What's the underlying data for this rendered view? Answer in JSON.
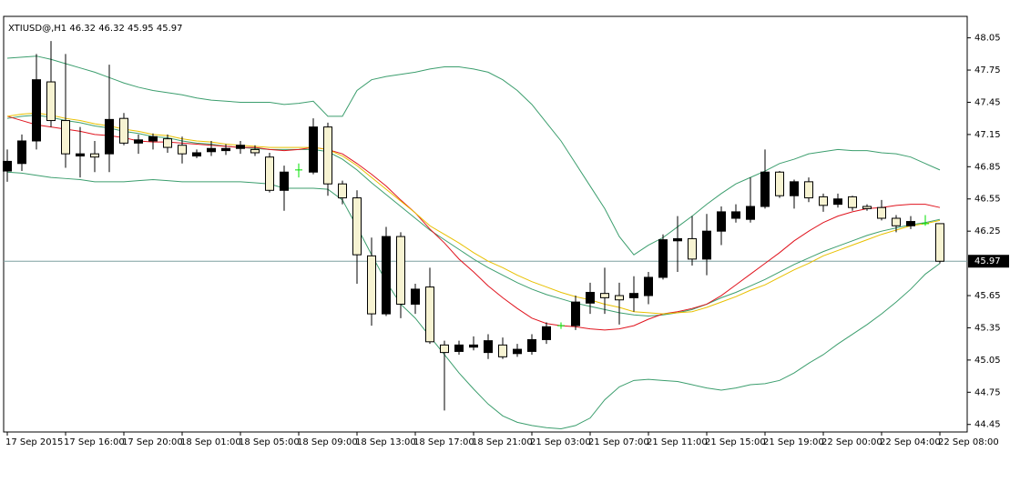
{
  "chart_data": {
    "type": "candlestick",
    "title": "XTIUSD@,H1",
    "categories": [
      "17 Sep 2015",
      null,
      null,
      null,
      "17 Sep 16:00",
      null,
      null,
      null,
      "17 Sep 20:00",
      null,
      null,
      null,
      "18 Sep 01:00",
      null,
      null,
      null,
      "18 Sep 05:00",
      null,
      null,
      null,
      "18 Sep 09:00",
      null,
      null,
      null,
      "18 Sep 13:00",
      null,
      null,
      null,
      "18 Sep 17:00",
      null,
      null,
      null,
      "18 Sep 21:00",
      null,
      null,
      null,
      "21 Sep 03:00",
      null,
      null,
      null,
      "21 Sep 07:00",
      null,
      null,
      null,
      "21 Sep 11:00",
      null,
      null,
      null,
      "21 Sep 15:00",
      null,
      null,
      null,
      "21 Sep 19:00",
      null,
      null,
      null,
      "22 Sep 00:00",
      null,
      null,
      null,
      "22 Sep 04:00",
      null,
      null,
      null,
      "22 Sep 08:00"
    ],
    "open": [
      46.81,
      46.88,
      47.09,
      47.64,
      47.28,
      46.95,
      46.97,
      46.97,
      47.3,
      47.07,
      47.09,
      47.11,
      47.05,
      46.95,
      46.99,
      47.0,
      47.02,
      47.01,
      46.94,
      46.63,
      46.82,
      46.8,
      47.22,
      46.69,
      46.56,
      46.02,
      45.48,
      46.2,
      45.57,
      45.73,
      45.19,
      45.13,
      45.17,
      45.12,
      45.19,
      45.11,
      45.13,
      45.24,
      45.37,
      45.37,
      45.58,
      45.67,
      45.65,
      45.63,
      45.65,
      45.82,
      46.16,
      46.18,
      45.99,
      46.25,
      46.37,
      46.36,
      46.48,
      46.8,
      46.58,
      46.71,
      46.57,
      46.5,
      46.57,
      46.48,
      46.47,
      46.37,
      46.3,
      46.32,
      46.32
    ],
    "high": [
      47.01,
      47.15,
      47.9,
      48.02,
      47.9,
      47.22,
      47.09,
      47.8,
      47.35,
      47.15,
      47.16,
      47.15,
      47.13,
      47.01,
      47.09,
      47.06,
      47.09,
      47.05,
      46.98,
      46.86,
      46.88,
      47.3,
      47.26,
      46.72,
      46.63,
      46.19,
      46.29,
      46.24,
      45.76,
      45.91,
      45.23,
      45.23,
      45.27,
      45.29,
      45.26,
      45.2,
      45.29,
      45.4,
      45.4,
      45.65,
      45.77,
      45.91,
      45.77,
      45.83,
      45.87,
      46.22,
      46.39,
      46.39,
      46.41,
      46.48,
      46.5,
      46.75,
      47.01,
      46.81,
      46.73,
      46.75,
      46.6,
      46.6,
      46.58,
      46.5,
      46.54,
      46.4,
      46.39,
      46.4,
      46.32
    ],
    "low": [
      46.71,
      46.81,
      47.01,
      47.22,
      46.84,
      46.75,
      46.8,
      46.8,
      47.05,
      46.97,
      47.01,
      46.98,
      46.88,
      46.93,
      46.95,
      46.96,
      46.97,
      46.95,
      46.61,
      46.44,
      46.75,
      46.78,
      46.58,
      46.5,
      45.76,
      45.37,
      45.46,
      45.44,
      45.48,
      45.2,
      44.58,
      45.1,
      45.14,
      45.06,
      45.06,
      45.08,
      45.1,
      45.2,
      45.34,
      45.33,
      45.48,
      45.48,
      45.38,
      45.5,
      45.57,
      45.8,
      45.87,
      45.93,
      45.84,
      46.12,
      46.33,
      46.33,
      46.46,
      46.56,
      46.46,
      46.52,
      46.43,
      46.47,
      46.44,
      46.44,
      46.35,
      46.24,
      46.27,
      46.3,
      45.95
    ],
    "close": [
      46.9,
      47.09,
      47.66,
      47.28,
      46.97,
      46.97,
      46.94,
      47.29,
      47.07,
      47.1,
      47.13,
      47.03,
      46.97,
      46.98,
      47.02,
      47.02,
      47.05,
      46.98,
      46.63,
      46.8,
      46.82,
      47.22,
      46.69,
      46.56,
      46.03,
      45.48,
      46.2,
      45.57,
      45.71,
      45.22,
      45.12,
      45.19,
      45.19,
      45.23,
      45.08,
      45.15,
      45.24,
      45.36,
      45.37,
      45.59,
      45.68,
      45.63,
      45.61,
      45.67,
      45.82,
      46.17,
      46.18,
      45.99,
      46.25,
      46.43,
      46.43,
      46.48,
      46.8,
      46.58,
      46.71,
      46.56,
      46.49,
      46.55,
      46.47,
      46.46,
      46.37,
      46.3,
      46.34,
      46.32,
      45.97
    ],
    "up_color": "#000000",
    "down_color": "#f7f3d2",
    "doji_color": "#00e000",
    "wick_color": "#000000",
    "lines": [
      {
        "color": "#3c9e6e",
        "values": [
          47.86,
          47.87,
          47.88,
          47.85,
          47.81,
          47.77,
          47.73,
          47.68,
          47.63,
          47.59,
          47.56,
          47.54,
          47.52,
          47.49,
          47.47,
          47.46,
          47.45,
          47.45,
          47.45,
          47.43,
          47.44,
          47.46,
          47.32,
          47.32,
          47.56,
          47.66,
          47.69,
          47.71,
          47.73,
          47.76,
          47.78,
          47.78,
          47.76,
          47.73,
          47.66,
          47.56,
          47.43,
          47.26,
          47.09,
          46.88,
          46.67,
          46.46,
          46.2,
          46.03,
          46.12,
          46.19,
          46.29,
          46.39,
          46.5,
          46.6,
          46.69,
          46.75,
          46.81,
          46.88,
          46.92,
          46.97,
          46.99,
          47.01,
          47.0,
          47.0,
          46.98,
          46.97,
          46.94,
          46.88,
          46.82
        ]
      },
      {
        "color": "#3c9e6e",
        "values": [
          47.3,
          47.32,
          47.33,
          47.31,
          47.28,
          47.26,
          47.23,
          47.21,
          47.18,
          47.16,
          47.13,
          47.12,
          47.09,
          47.07,
          47.06,
          47.04,
          47.03,
          47.02,
          47.01,
          47.01,
          47.01,
          47.01,
          46.99,
          46.92,
          46.82,
          46.7,
          46.59,
          46.48,
          46.37,
          46.26,
          46.17,
          46.08,
          45.99,
          45.91,
          45.84,
          45.77,
          45.71,
          45.66,
          45.62,
          45.58,
          45.55,
          45.52,
          45.49,
          45.47,
          45.46,
          45.47,
          45.49,
          45.52,
          45.57,
          45.63,
          45.68,
          45.74,
          45.8,
          45.87,
          45.94,
          46.0,
          46.06,
          46.11,
          46.16,
          46.21,
          46.25,
          46.28,
          46.31,
          46.33,
          46.36
        ]
      },
      {
        "color": "#3c9e6e",
        "values": [
          46.8,
          46.79,
          46.77,
          46.75,
          46.74,
          46.73,
          46.71,
          46.71,
          46.71,
          46.72,
          46.73,
          46.72,
          46.71,
          46.71,
          46.71,
          46.71,
          46.71,
          46.7,
          46.69,
          46.65,
          46.65,
          46.65,
          46.64,
          46.54,
          46.29,
          46.03,
          45.78,
          45.57,
          45.44,
          45.27,
          45.1,
          44.93,
          44.78,
          44.64,
          44.53,
          44.47,
          44.44,
          44.42,
          44.41,
          44.44,
          44.51,
          44.68,
          44.8,
          44.86,
          44.87,
          44.86,
          44.85,
          44.82,
          44.79,
          44.77,
          44.79,
          44.82,
          44.83,
          44.86,
          44.93,
          45.02,
          45.1,
          45.2,
          45.29,
          45.38,
          45.48,
          45.59,
          45.71,
          45.85,
          45.95
        ]
      },
      {
        "color": "#e0141e",
        "values": [
          47.32,
          47.28,
          47.24,
          47.22,
          47.2,
          47.18,
          47.15,
          47.14,
          47.12,
          47.09,
          47.08,
          47.08,
          47.07,
          47.06,
          47.05,
          47.04,
          47.03,
          47.03,
          47.01,
          47.0,
          47.01,
          47.03,
          47.01,
          46.97,
          46.88,
          46.78,
          46.67,
          46.54,
          46.42,
          46.27,
          46.14,
          45.99,
          45.87,
          45.74,
          45.63,
          45.53,
          45.44,
          45.39,
          45.37,
          45.36,
          45.34,
          45.33,
          45.34,
          45.37,
          45.43,
          45.48,
          45.5,
          45.53,
          45.57,
          45.65,
          45.75,
          45.85,
          45.95,
          46.05,
          46.16,
          46.25,
          46.33,
          46.39,
          46.43,
          46.46,
          46.47,
          46.49,
          46.5,
          46.5,
          46.47
        ]
      },
      {
        "color": "#e8c000",
        "values": [
          47.32,
          47.34,
          47.35,
          47.33,
          47.3,
          47.28,
          47.25,
          47.23,
          47.2,
          47.18,
          47.15,
          47.14,
          47.11,
          47.09,
          47.08,
          47.06,
          47.05,
          47.04,
          47.03,
          47.03,
          47.03,
          47.03,
          47.01,
          46.95,
          46.86,
          46.75,
          46.64,
          46.53,
          46.42,
          46.3,
          46.22,
          46.14,
          46.05,
          45.97,
          45.91,
          45.84,
          45.78,
          45.73,
          45.68,
          45.64,
          45.61,
          45.57,
          45.54,
          45.5,
          45.49,
          45.48,
          45.49,
          45.5,
          45.54,
          45.59,
          45.64,
          45.7,
          45.75,
          45.82,
          45.89,
          45.95,
          46.02,
          46.07,
          46.12,
          46.17,
          46.22,
          46.26,
          46.3,
          46.32,
          46.35
        ]
      }
    ],
    "price_line_color": "#7fa0a0",
    "ylim": [
      44.38,
      48.25
    ],
    "yticks": [
      48.05,
      47.75,
      47.45,
      47.15,
      46.85,
      46.55,
      46.25,
      45.65,
      45.35,
      45.05,
      44.75,
      44.45
    ]
  }
}
